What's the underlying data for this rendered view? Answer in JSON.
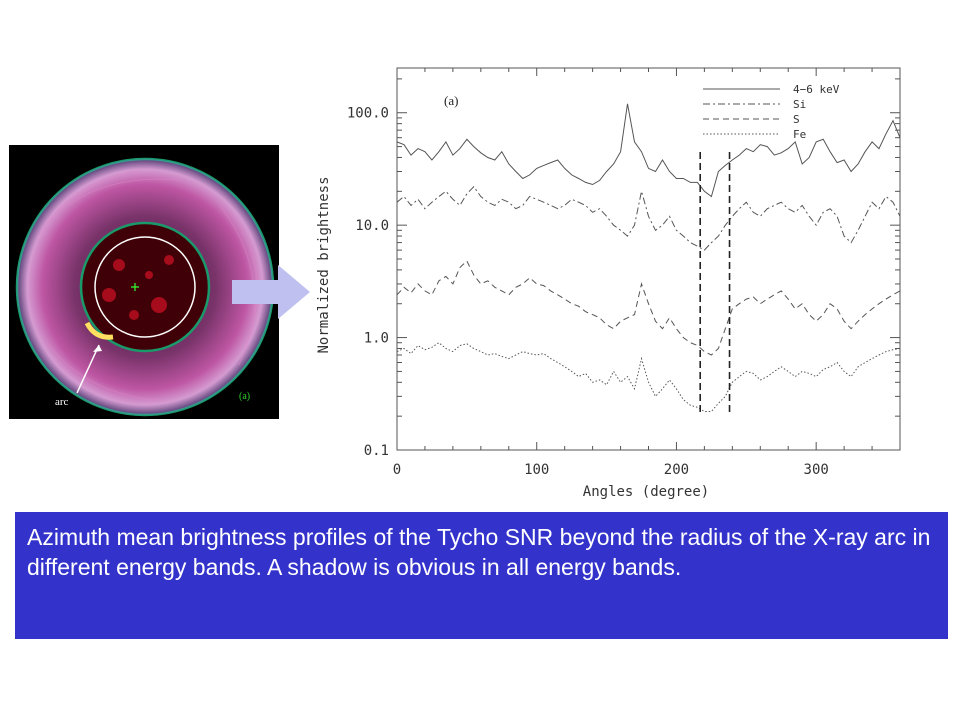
{
  "image_panel": {
    "arc_label": "arc",
    "panel_label": "(a)"
  },
  "caption": {
    "text": "Azimuth mean brightness profiles of the Tycho SNR beyond the radius of the X-ray arc in different energy bands. A shadow is obvious in all energy bands."
  },
  "colors": {
    "caption_bg": "#3333cc",
    "arrow_fill": "#c0c0f0",
    "ring_green": "#1a9a6a",
    "shell_color": "#d04080"
  },
  "chart_data": {
    "type": "line",
    "panel_label": "(a)",
    "xlabel": "Angles (degree)",
    "ylabel": "Normalized brightness",
    "xlim": [
      0,
      360
    ],
    "ylim": [
      0.1,
      250
    ],
    "yscale": "log",
    "xticks": [
      0,
      100,
      200,
      300
    ],
    "xtick_labels": [
      "0",
      "100",
      "200",
      "300"
    ],
    "yticks": [
      0.1,
      1.0,
      10.0,
      100.0
    ],
    "ytick_labels": [
      "0.1",
      "1.0",
      "10.0",
      "100.0"
    ],
    "legend_position": "top-right",
    "vlines": [
      217,
      238
    ],
    "x": [
      0,
      5,
      10,
      15,
      20,
      25,
      30,
      35,
      40,
      45,
      50,
      55,
      60,
      65,
      70,
      75,
      80,
      85,
      90,
      95,
      100,
      105,
      110,
      115,
      120,
      125,
      130,
      135,
      140,
      145,
      150,
      155,
      160,
      165,
      170,
      175,
      180,
      185,
      190,
      195,
      200,
      205,
      210,
      215,
      220,
      225,
      230,
      235,
      240,
      245,
      250,
      255,
      260,
      265,
      270,
      275,
      280,
      285,
      290,
      295,
      300,
      305,
      310,
      315,
      320,
      325,
      330,
      335,
      340,
      345,
      350,
      355,
      360
    ],
    "series": [
      {
        "name": "4−6 keV",
        "style": "solid",
        "values": [
          55,
          52,
          42,
          48,
          45,
          38,
          45,
          55,
          42,
          48,
          58,
          50,
          44,
          40,
          38,
          45,
          35,
          30,
          26,
          28,
          32,
          34,
          36,
          38,
          32,
          28,
          26,
          24,
          23,
          25,
          30,
          35,
          45,
          120,
          55,
          45,
          32,
          30,
          38,
          30,
          26,
          26,
          24,
          24,
          20,
          18,
          30,
          34,
          38,
          42,
          48,
          45,
          52,
          50,
          42,
          44,
          48,
          55,
          35,
          40,
          55,
          58,
          45,
          36,
          38,
          30,
          35,
          45,
          55,
          48,
          65,
          85,
          60
        ]
      },
      {
        "name": "Si",
        "style": "dashdot",
        "values": [
          16,
          18,
          15,
          17,
          14,
          16,
          18,
          20,
          17,
          15,
          19,
          22,
          18,
          16,
          15,
          17,
          16,
          14,
          15,
          18,
          17,
          16,
          15,
          14,
          15,
          17,
          16,
          15,
          13,
          14,
          12,
          10,
          9,
          8,
          10,
          20,
          12,
          9,
          10,
          12,
          9,
          8,
          7,
          6.5,
          6,
          7,
          8,
          10,
          12,
          14,
          16,
          13,
          12,
          14,
          15,
          16,
          14,
          13,
          15,
          12,
          10,
          13,
          14,
          12,
          8,
          7,
          9,
          12,
          16,
          14,
          18,
          16,
          12
        ]
      },
      {
        "name": "S",
        "style": "dashed",
        "values": [
          2.4,
          2.8,
          2.5,
          3.0,
          2.6,
          2.4,
          3.2,
          3.5,
          3.0,
          4.2,
          4.8,
          3.6,
          3.0,
          3.2,
          2.8,
          2.6,
          2.4,
          2.8,
          3.0,
          3.4,
          3.0,
          2.9,
          2.6,
          2.4,
          2.2,
          2.0,
          1.9,
          1.7,
          1.6,
          1.5,
          1.3,
          1.2,
          1.4,
          1.5,
          1.6,
          3.0,
          2.0,
          1.4,
          1.2,
          1.5,
          1.2,
          1.0,
          0.9,
          0.85,
          0.75,
          0.7,
          0.8,
          1.2,
          1.8,
          2.0,
          2.2,
          2.3,
          2.0,
          2.2,
          2.4,
          2.6,
          2.2,
          1.8,
          2.0,
          1.6,
          1.4,
          1.6,
          2.0,
          1.8,
          1.4,
          1.2,
          1.4,
          1.6,
          1.8,
          2.0,
          2.2,
          2.4,
          2.6
        ]
      },
      {
        "name": "Fe",
        "style": "dotted",
        "values": [
          0.75,
          0.8,
          0.72,
          0.85,
          0.78,
          0.82,
          0.9,
          0.8,
          0.75,
          0.85,
          0.88,
          0.8,
          0.75,
          0.7,
          0.72,
          0.68,
          0.65,
          0.7,
          0.75,
          0.72,
          0.7,
          0.72,
          0.65,
          0.6,
          0.55,
          0.5,
          0.45,
          0.48,
          0.4,
          0.42,
          0.38,
          0.5,
          0.4,
          0.45,
          0.35,
          0.65,
          0.4,
          0.3,
          0.35,
          0.42,
          0.35,
          0.28,
          0.25,
          0.24,
          0.22,
          0.22,
          0.26,
          0.3,
          0.4,
          0.45,
          0.5,
          0.48,
          0.42,
          0.45,
          0.5,
          0.55,
          0.5,
          0.45,
          0.5,
          0.48,
          0.45,
          0.52,
          0.55,
          0.6,
          0.5,
          0.45,
          0.55,
          0.6,
          0.65,
          0.7,
          0.75,
          0.78,
          0.8
        ]
      }
    ]
  }
}
